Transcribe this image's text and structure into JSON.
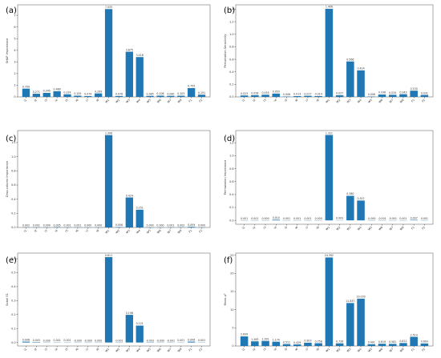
{
  "colors": {
    "bar": "#1f77b4",
    "axis": "#333333",
    "text": "#333333"
  },
  "chart_data": [
    {
      "type": "bar",
      "panel_label": "(a)",
      "ylabel": "SHAP Importance",
      "categories": [
        "I1",
        "I2",
        "I3",
        "I4",
        "I5",
        "I6",
        "I7",
        "I8",
        "W1",
        "W2",
        "W3",
        "W4",
        "W5",
        "W6",
        "W7",
        "W8",
        "F1",
        "F2"
      ],
      "values": [
        0.709,
        0.271,
        0.345,
        0.489,
        0.224,
        0.105,
        0.074,
        0.299,
        7.535,
        0.078,
        3.875,
        3.418,
        0.085,
        0.108,
        0.09,
        0.103,
        0.755,
        0.191
      ],
      "value_labels": [
        "0.709",
        "0.271",
        "0.345",
        "0.489",
        "0.224",
        "0.105",
        "0.074",
        "0.299",
        "7.535",
        "0.078",
        "3.875",
        "3.418",
        "0.085",
        "0.108",
        "0.090",
        "0.103",
        "0.755",
        "0.191"
      ],
      "yticks": [
        0,
        1,
        2,
        3,
        4,
        5,
        6,
        7
      ],
      "ylim": [
        0,
        7.9
      ]
    },
    {
      "type": "bar",
      "panel_label": "(b)",
      "ylabel": "Perturbation Sensitivity",
      "categories": [
        "I1",
        "I2",
        "I3",
        "I4",
        "I5",
        "I6",
        "I7",
        "I8",
        "W1",
        "W2",
        "W3",
        "W4",
        "W5",
        "W6",
        "W7",
        "W8",
        "F1",
        "F2"
      ],
      "values": [
        0.023,
        0.028,
        0.035,
        0.053,
        0.006,
        0.013,
        0.017,
        0.014,
        1.406,
        0.027,
        0.566,
        0.424,
        0.006,
        0.038,
        0.034,
        0.043,
        0.1,
        0.031
      ],
      "value_labels": [
        "0.023",
        "0.028",
        "0.035",
        "0.053",
        "0.006",
        "0.013",
        "0.017",
        "0.014",
        "1.406",
        "0.027",
        "0.566",
        "0.424",
        "0.006",
        "0.038",
        "0.034",
        "0.043",
        "0.100",
        "0.031"
      ],
      "yticks": [
        0,
        0.2,
        0.4,
        0.6,
        0.8,
        1.0,
        1.2,
        1.4
      ],
      "ylim": [
        0,
        1.47
      ]
    },
    {
      "type": "bar",
      "panel_label": "(c)",
      "ylabel": "Drop-column Importance",
      "categories": [
        "I1",
        "I2",
        "I3",
        "I4",
        "I5",
        "I6",
        "I7",
        "I8",
        "W1",
        "W2",
        "W3",
        "W4",
        "W5",
        "W6",
        "W7",
        "W8",
        "F1",
        "F2"
      ],
      "values": [
        0.002,
        0.001,
        0.0,
        0.005,
        0.001,
        0.001,
        0.0,
        0.0,
        1.306,
        0.006,
        0.424,
        0.251,
        0.0,
        0.0,
        0.001,
        0.002,
        0.009,
        0.0
      ],
      "value_labels": [
        "0.002",
        "0.001",
        "0.000",
        "0.005",
        "0.001",
        "0.001",
        "0.000",
        "0.000",
        "1.306",
        "0.006",
        "0.424",
        "0.251",
        "0.000",
        "0.000",
        "0.001",
        "0.002",
        "0.009",
        "0.000"
      ],
      "yticks": [
        0,
        0.2,
        0.4,
        0.6,
        0.8,
        1.0,
        1.2
      ],
      "ylim": [
        0,
        1.37
      ]
    },
    {
      "type": "bar",
      "panel_label": "(d)",
      "ylabel": "Permutation Importance",
      "categories": [
        "I1",
        "I2",
        "I3",
        "I4",
        "I5",
        "I6",
        "I7",
        "I8",
        "W1",
        "W2",
        "W3",
        "W4",
        "W5",
        "W6",
        "W7",
        "W8",
        "F1",
        "F2"
      ],
      "values": [
        0.001,
        0.001,
        0.0,
        0.01,
        0.001,
        0.001,
        0.001,
        0.0,
        1.321,
        0.003,
        0.38,
        0.307,
        -0.0,
        -0.001,
        -0.001,
        0.001,
        0.007,
        0.001
      ],
      "value_labels": [
        "0.001",
        "0.001",
        "0.000",
        "0.010",
        "0.001",
        "0.001",
        "0.001",
        "0.000",
        "1.321",
        "0.003",
        "0.380",
        "0.307",
        "-0.000",
        "-0.001",
        "-0.001",
        "0.001",
        "0.007",
        "0.001"
      ],
      "yticks": [
        0,
        0.2,
        0.4,
        0.6,
        0.8,
        1.0,
        1.2
      ],
      "ylim": [
        -0.06,
        1.39
      ]
    },
    {
      "type": "bar",
      "panel_label": "(e)",
      "ylabel": "Sobol S1",
      "categories": [
        "I1",
        "I2",
        "I3",
        "I4",
        "I5",
        "I6",
        "I7",
        "I8",
        "W1",
        "W2",
        "W3",
        "W4",
        "W5",
        "W6",
        "W7",
        "W8",
        "F1",
        "F2"
      ],
      "values": [
        0.006,
        0.003,
        0.0,
        0.001,
        0.001,
        -0.0,
        -0.0,
        0.0,
        0.611,
        -0.001,
        0.198,
        0.121,
        -0.002,
        -0.0,
        -0.001,
        0.001,
        0.006,
        0.001
      ],
      "value_labels": [
        "0.006",
        "0.003",
        "0.000",
        "0.001",
        "0.001",
        "-0.000",
        "-0.000",
        "0.000",
        "0.611",
        "-0.001",
        "0.198",
        "0.121",
        "-0.002",
        "-0.000",
        "-0.001",
        "0.001",
        "0.006",
        "0.001"
      ],
      "yticks": [
        0,
        0.1,
        0.2,
        0.3,
        0.4,
        0.5,
        0.6
      ],
      "ylim": [
        -0.025,
        0.64
      ]
    },
    {
      "type": "bar",
      "panel_label": "(f)",
      "ylabel": "Mono-ρ²",
      "categories": [
        "I1",
        "I2",
        "I3",
        "I4",
        "I5",
        "I6",
        "I7",
        "I8",
        "W1",
        "W2",
        "W3",
        "W4",
        "W5",
        "W6",
        "W7",
        "W8",
        "F1",
        "F2"
      ],
      "values": [
        2.639,
        1.283,
        1.391,
        1.174,
        0.511,
        0.429,
        0.903,
        0.758,
        24.392,
        0.726,
        11.837,
        13.033,
        0.491,
        0.619,
        0.581,
        0.812,
        2.514,
        0.693
      ],
      "value_labels": [
        "2.639",
        "1.283",
        "1.391",
        "1.174",
        "0.511",
        "0.429",
        "0.903",
        "0.758",
        "24.392",
        "0.726",
        "11.837",
        "13.033",
        "0.491",
        "0.619",
        "0.581",
        "0.812",
        "2.514",
        "0.693"
      ],
      "yticks": [
        0,
        5,
        10,
        15,
        20,
        25
      ],
      "ylim": [
        0,
        25.6
      ]
    }
  ]
}
